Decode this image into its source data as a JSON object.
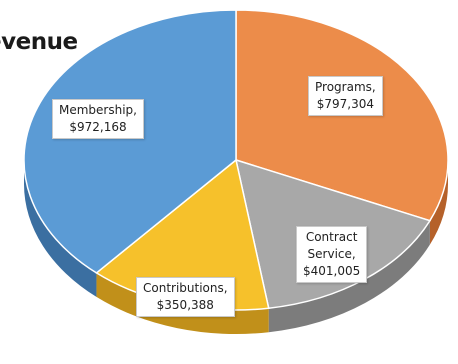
{
  "chart_data": {
    "type": "pie",
    "title": "evenue",
    "slices": [
      {
        "name": "Programs",
        "value": 797304,
        "line1": "Programs,",
        "line2": "",
        "amount": "$797,304",
        "color": "#ec8c4a",
        "side": "#b5612a"
      },
      {
        "name": "Contract Service",
        "value": 401005,
        "line1": "Contract",
        "line2": "Service,",
        "amount": "$401,005",
        "color": "#a8a8a8",
        "side": "#7c7c7c"
      },
      {
        "name": "Contributions",
        "value": 350388,
        "line1": "Contributions,",
        "line2": "",
        "amount": "$350,388",
        "color": "#f6c12b",
        "side": "#c1901a"
      },
      {
        "name": "Membership",
        "value": 972168,
        "line1": "Membership,",
        "line2": "",
        "amount": "$972,168",
        "color": "#5b9bd5",
        "side": "#3b6fa1"
      }
    ]
  }
}
